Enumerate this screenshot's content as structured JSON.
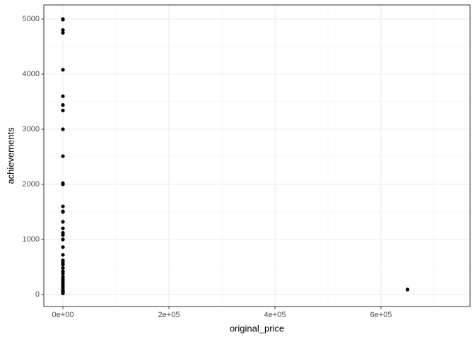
{
  "chart_data": {
    "type": "scatter",
    "x_label": "original_price",
    "y_label": "achievements",
    "color": "#000000",
    "grid": true,
    "xlim": [
      -36000,
      768000
    ],
    "ylim": [
      -218,
      5256
    ],
    "xticks": [
      {
        "value": 0,
        "label": "0e+00"
      },
      {
        "value": 200000,
        "label": "2e+05"
      },
      {
        "value": 400000,
        "label": "4e+05"
      },
      {
        "value": 600000,
        "label": "6e+05"
      }
    ],
    "yticks": [
      0,
      1000,
      2000,
      3000,
      4000,
      5000
    ],
    "x_minor_grid": [
      100000,
      300000,
      500000,
      700000
    ],
    "y_minor_grid": [
      500,
      1500,
      2500,
      3500,
      4500
    ],
    "x": [
      10,
      20,
      15,
      10,
      20,
      15,
      10,
      20,
      15,
      10,
      20,
      15,
      10,
      20,
      15,
      10,
      20,
      15,
      10,
      20,
      15,
      10,
      20,
      15,
      10,
      20,
      15,
      10,
      20,
      15,
      10,
      20,
      15,
      10,
      20,
      15,
      10,
      20,
      650000
    ],
    "values": [
      5000,
      4990,
      4800,
      4750,
      4080,
      3600,
      3440,
      3340,
      3000,
      2510,
      2020,
      2000,
      1600,
      1510,
      1500,
      1320,
      1200,
      1120,
      1080,
      1000,
      860,
      720,
      620,
      580,
      540,
      480,
      420,
      380,
      320,
      280,
      240,
      200,
      160,
      120,
      80,
      60,
      40,
      20,
      90
    ]
  }
}
